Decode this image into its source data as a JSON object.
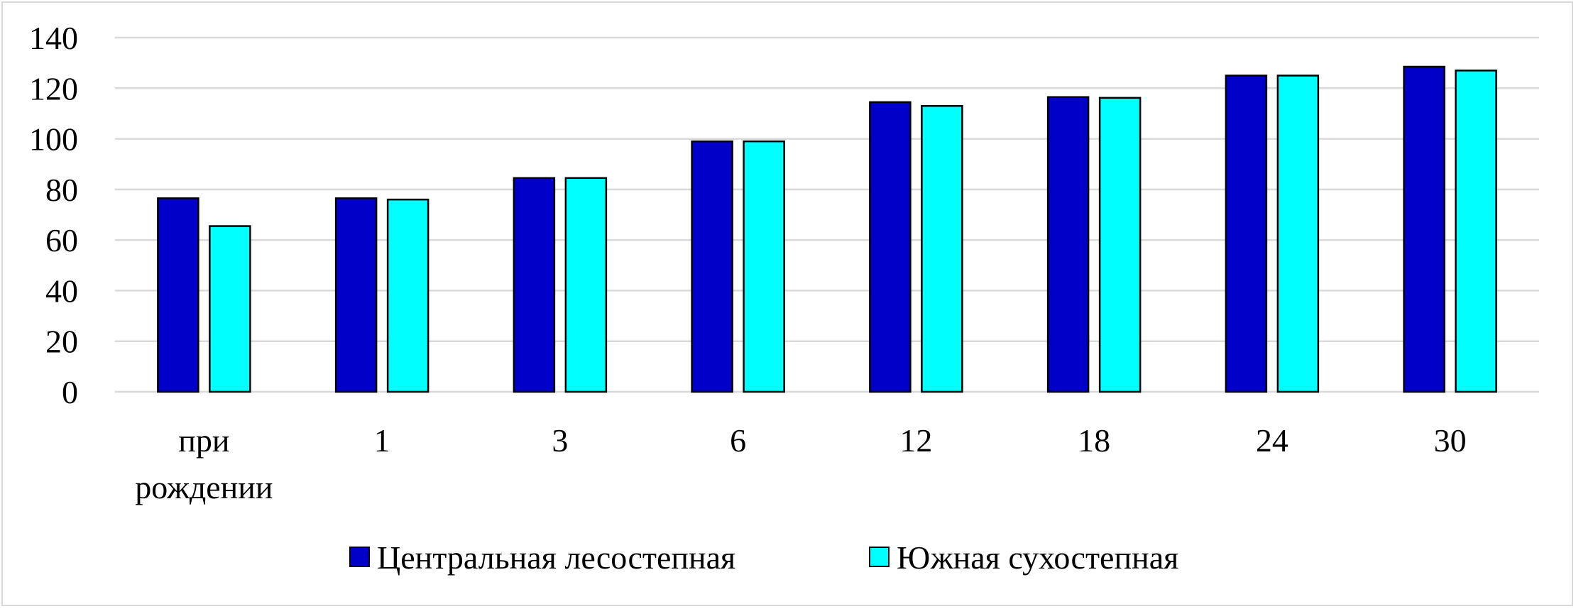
{
  "chart_data": {
    "type": "bar",
    "title": "",
    "xlabel": "",
    "ylabel": "",
    "categories": [
      "при рождении",
      "1",
      "3",
      "6",
      "12",
      "18",
      "24",
      "30"
    ],
    "series": [
      {
        "name": "Центральная лесостепная",
        "color": "#0000C8",
        "values": [
          76.5,
          76.5,
          84.5,
          99,
          114.5,
          116.5,
          125,
          128.5
        ]
      },
      {
        "name": "Южная сухостепная",
        "color": "#00FFFF",
        "values": [
          65.5,
          76,
          84.5,
          99,
          113,
          116.2,
          125,
          127
        ]
      }
    ],
    "ylim": [
      0,
      140
    ],
    "yticks": [
      0,
      20,
      40,
      60,
      80,
      100,
      120,
      140
    ],
    "grid": true,
    "legend": "bottom"
  }
}
